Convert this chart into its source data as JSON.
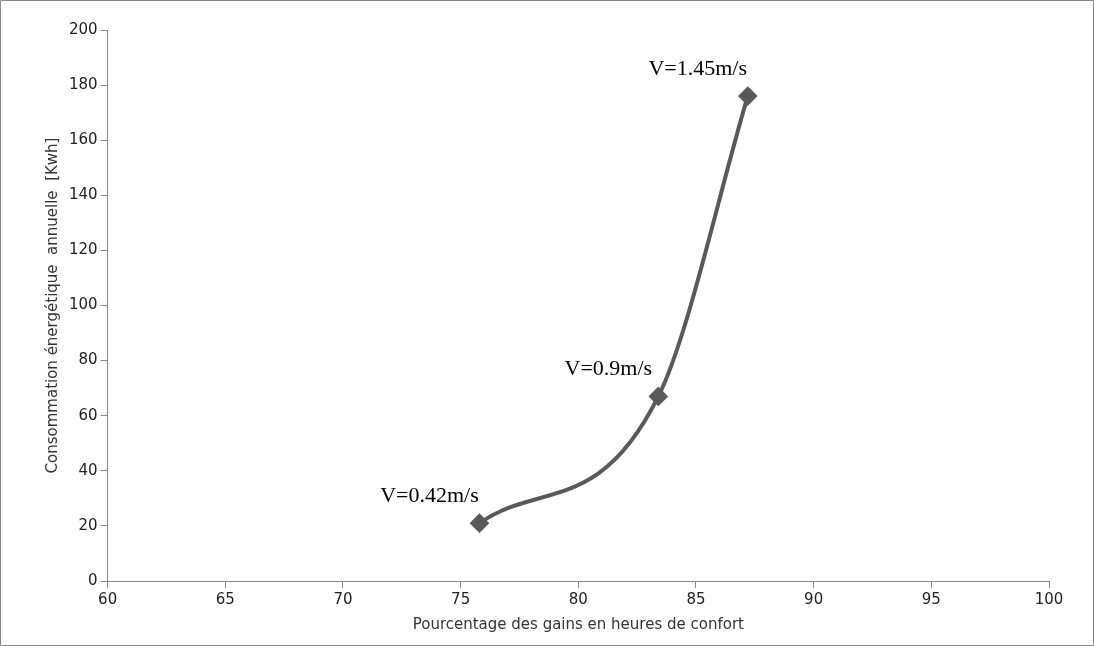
{
  "chart_data": {
    "type": "line",
    "xlabel": "Pourcentage des gains en heures de confort",
    "ylabel": "Consommation énergétique  annuelle  [Kwh]",
    "x": [
      75.8,
      83.4,
      87.2
    ],
    "series": [
      {
        "color": "#595959",
        "values": [
          21,
          67,
          176
        ]
      }
    ],
    "xlim": [
      60,
      100
    ],
    "xticks": [
      60,
      65,
      70,
      75,
      80,
      85,
      90,
      95,
      100
    ],
    "ylim": [
      0,
      200
    ],
    "yticks": [
      0,
      20,
      40,
      60,
      80,
      100,
      120,
      140,
      160,
      180,
      200
    ],
    "grid": false,
    "legend": false,
    "marker": "diamond",
    "line_style": "solid",
    "annotations": [
      {
        "text": "V=0.42m/s",
        "x": 75.8,
        "y": 21
      },
      {
        "text": "V=0.9m/s",
        "x": 83.4,
        "y": 67
      },
      {
        "text": "V=1.45m/s",
        "x": 87.2,
        "y": 176
      }
    ]
  }
}
